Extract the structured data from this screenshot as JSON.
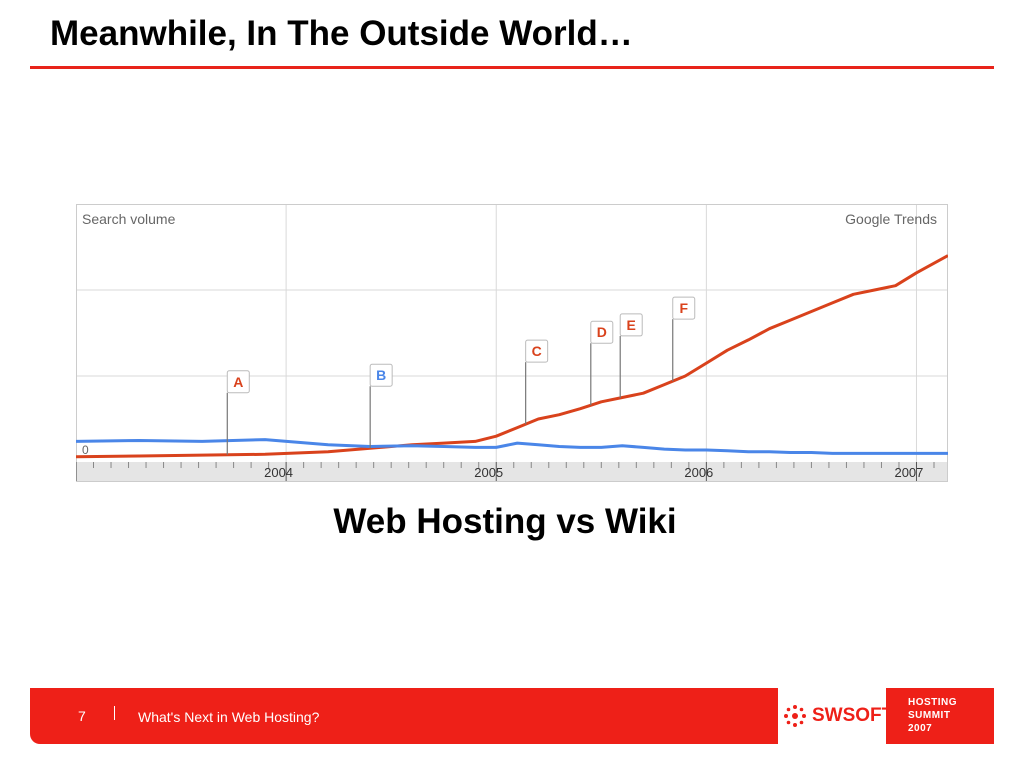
{
  "slide": {
    "title": "Meanwhile, In The Outside World…",
    "caption": "Web Hosting vs Wiki"
  },
  "footer": {
    "page_number": "7",
    "text": "What's Next in Web Hosting?",
    "logo_text": "SWSOFT",
    "summit_lines": [
      "HOSTING",
      "SUMMIT",
      "2007"
    ],
    "bar_color": "#ee2018"
  },
  "chart_data": {
    "type": "line",
    "ylabel": "Search volume",
    "source_label": "Google Trends",
    "y_tick_labels": [
      "0"
    ],
    "ylim": [
      0,
      3
    ],
    "xlim": [
      2003.0,
      2007.15
    ],
    "x_ticks": [
      2004,
      2005,
      2006,
      2007
    ],
    "x_tick_labels": [
      "2004",
      "2005",
      "2006",
      "2007"
    ],
    "grid": true,
    "series": [
      {
        "color": "#d9421c",
        "x": [
          2003.0,
          2003.3,
          2003.6,
          2003.9,
          2004.2,
          2004.4,
          2004.6,
          2004.75,
          2004.9,
          2005.0,
          2005.1,
          2005.2,
          2005.3,
          2005.4,
          2005.5,
          2005.6,
          2005.7,
          2005.8,
          2005.9,
          2006.0,
          2006.1,
          2006.2,
          2006.3,
          2006.4,
          2006.5,
          2006.6,
          2006.7,
          2006.8,
          2006.9,
          2007.0,
          2007.15
        ],
        "values": [
          0.06,
          0.07,
          0.08,
          0.09,
          0.12,
          0.16,
          0.2,
          0.22,
          0.24,
          0.3,
          0.4,
          0.5,
          0.55,
          0.62,
          0.7,
          0.75,
          0.8,
          0.9,
          1.0,
          1.15,
          1.3,
          1.42,
          1.55,
          1.65,
          1.75,
          1.85,
          1.95,
          2.0,
          2.05,
          2.2,
          2.4
        ]
      },
      {
        "color": "#4a86e8",
        "x": [
          2003.0,
          2003.3,
          2003.6,
          2003.9,
          2004.2,
          2004.4,
          2004.6,
          2004.75,
          2004.9,
          2005.0,
          2005.1,
          2005.2,
          2005.3,
          2005.4,
          2005.5,
          2005.6,
          2005.7,
          2005.8,
          2005.9,
          2006.0,
          2006.1,
          2006.2,
          2006.3,
          2006.4,
          2006.5,
          2006.6,
          2006.7,
          2006.8,
          2006.9,
          2007.0,
          2007.15
        ],
        "values": [
          0.24,
          0.25,
          0.24,
          0.26,
          0.2,
          0.18,
          0.19,
          0.18,
          0.17,
          0.17,
          0.22,
          0.2,
          0.18,
          0.17,
          0.17,
          0.19,
          0.17,
          0.15,
          0.14,
          0.14,
          0.13,
          0.12,
          0.12,
          0.11,
          0.11,
          0.1,
          0.1,
          0.1,
          0.1,
          0.1,
          0.1
        ]
      }
    ],
    "annotations": [
      {
        "label": "A",
        "x": 2003.72,
        "color": "#d9421c"
      },
      {
        "label": "B",
        "x": 2004.4,
        "color": "#4a86e8"
      },
      {
        "label": "C",
        "x": 2005.14,
        "color": "#d9421c"
      },
      {
        "label": "D",
        "x": 2005.45,
        "color": "#d9421c"
      },
      {
        "label": "E",
        "x": 2005.59,
        "color": "#d9421c"
      },
      {
        "label": "F",
        "x": 2005.84,
        "color": "#d9421c"
      }
    ]
  }
}
